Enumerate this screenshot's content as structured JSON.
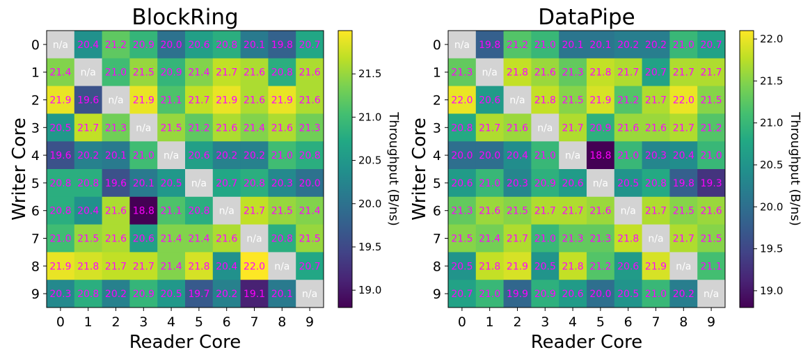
{
  "chart_data": [
    {
      "type": "heatmap",
      "title": "BlockRing",
      "xlabel": "Reader Core",
      "ylabel": "Writer Core",
      "x_ticks": [
        "0",
        "1",
        "2",
        "3",
        "4",
        "5",
        "6",
        "7",
        "8",
        "9"
      ],
      "y_ticks": [
        "0",
        "1",
        "2",
        "3",
        "4",
        "5",
        "6",
        "7",
        "8",
        "9"
      ],
      "colorbar": {
        "label": "Throughput (B/ns)",
        "range": [
          18.8,
          22.0
        ],
        "ticks": [
          "19.0",
          "19.5",
          "20.0",
          "20.5",
          "21.0",
          "21.5"
        ],
        "colormap": "viridis"
      },
      "missing_label": "n/a",
      "missing_color": "#d3d3d3",
      "annotation_color": "#ff00ff",
      "missing_text_color": "#ffffff",
      "values": [
        [
          null,
          20.4,
          21.2,
          20.9,
          20.0,
          20.6,
          20.8,
          20.1,
          19.8,
          20.7
        ],
        [
          21.4,
          null,
          21.0,
          21.5,
          20.9,
          21.4,
          21.7,
          21.6,
          20.8,
          21.6
        ],
        [
          21.9,
          19.6,
          null,
          21.9,
          21.1,
          21.7,
          21.9,
          21.6,
          21.9,
          21.6
        ],
        [
          20.5,
          21.7,
          21.3,
          null,
          21.5,
          21.2,
          21.6,
          21.4,
          21.6,
          21.3
        ],
        [
          19.6,
          20.2,
          20.1,
          21.0,
          null,
          20.6,
          20.2,
          20.2,
          21.0,
          20.8
        ],
        [
          20.8,
          20.8,
          19.6,
          20.1,
          20.5,
          null,
          20.7,
          20.8,
          20.3,
          20.0
        ],
        [
          20.8,
          20.4,
          21.6,
          18.8,
          21.1,
          20.8,
          null,
          21.7,
          21.5,
          21.4
        ],
        [
          21.0,
          21.5,
          21.6,
          20.6,
          21.4,
          21.4,
          21.6,
          null,
          20.8,
          21.5
        ],
        [
          21.9,
          21.8,
          21.7,
          21.7,
          21.4,
          21.8,
          20.4,
          22.0,
          null,
          20.7
        ],
        [
          20.3,
          20.8,
          20.2,
          20.9,
          20.5,
          19.7,
          20.2,
          19.1,
          20.1,
          null
        ]
      ]
    },
    {
      "type": "heatmap",
      "title": "DataPipe",
      "xlabel": "Reader Core",
      "ylabel": "Writer Core",
      "x_ticks": [
        "0",
        "1",
        "2",
        "3",
        "4",
        "5",
        "6",
        "7",
        "8",
        "9"
      ],
      "y_ticks": [
        "0",
        "1",
        "2",
        "3",
        "4",
        "5",
        "6",
        "7",
        "8",
        "9"
      ],
      "colorbar": {
        "label": "Throughput (B/ns)",
        "range": [
          18.8,
          22.1
        ],
        "ticks": [
          "19.0",
          "19.5",
          "20.0",
          "20.5",
          "21.0",
          "21.5",
          "22.0"
        ],
        "colormap": "viridis"
      },
      "missing_label": "n/a",
      "missing_color": "#d3d3d3",
      "annotation_color": "#ff00ff",
      "missing_text_color": "#ffffff",
      "values": [
        [
          null,
          19.8,
          21.2,
          21.0,
          20.1,
          20.1,
          20.2,
          20.2,
          21.0,
          20.7
        ],
        [
          21.3,
          null,
          21.8,
          21.6,
          21.3,
          21.8,
          21.7,
          20.7,
          21.7,
          21.7
        ],
        [
          22.0,
          20.6,
          null,
          21.8,
          21.5,
          21.9,
          21.2,
          21.7,
          22.0,
          21.5
        ],
        [
          20.8,
          21.7,
          21.6,
          null,
          21.7,
          20.9,
          21.6,
          21.6,
          21.7,
          21.2
        ],
        [
          20.0,
          20.0,
          20.4,
          21.0,
          null,
          18.8,
          21.0,
          20.3,
          20.4,
          21.0
        ],
        [
          20.6,
          21.0,
          20.3,
          20.9,
          20.6,
          null,
          20.5,
          20.8,
          19.8,
          19.3
        ],
        [
          21.3,
          21.6,
          21.5,
          21.7,
          21.7,
          21.6,
          null,
          21.7,
          21.5,
          21.6
        ],
        [
          21.5,
          21.4,
          21.7,
          21.0,
          21.3,
          21.3,
          21.8,
          null,
          21.7,
          21.5
        ],
        [
          20.5,
          21.8,
          21.9,
          20.5,
          21.8,
          21.2,
          20.6,
          21.9,
          null,
          21.1
        ],
        [
          20.7,
          21.0,
          19.9,
          20.9,
          20.6,
          20.0,
          20.5,
          21.0,
          20.2,
          null
        ]
      ]
    }
  ]
}
